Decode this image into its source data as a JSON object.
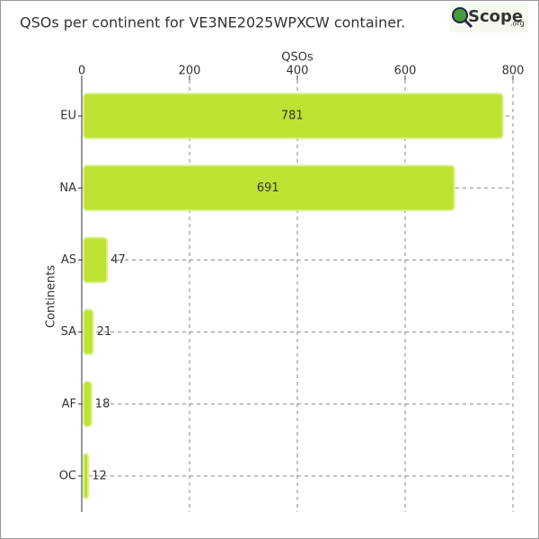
{
  "chart_data": {
    "type": "hbar",
    "title": "QSOs per continent for VE3NE2025WPXCW container.",
    "logo": {
      "text": "Scope",
      "suffix": ".org"
    },
    "xlabel": "QSOs",
    "ylabel": "Continents",
    "categories": [
      "EU",
      "NA",
      "AS",
      "SA",
      "AF",
      "OC"
    ],
    "values": [
      781,
      691,
      47,
      21,
      18,
      12
    ],
    "color": "#bde232",
    "xlim": [
      0,
      800
    ],
    "xticks": [
      0,
      200,
      400,
      600,
      800
    ],
    "grid": true
  }
}
